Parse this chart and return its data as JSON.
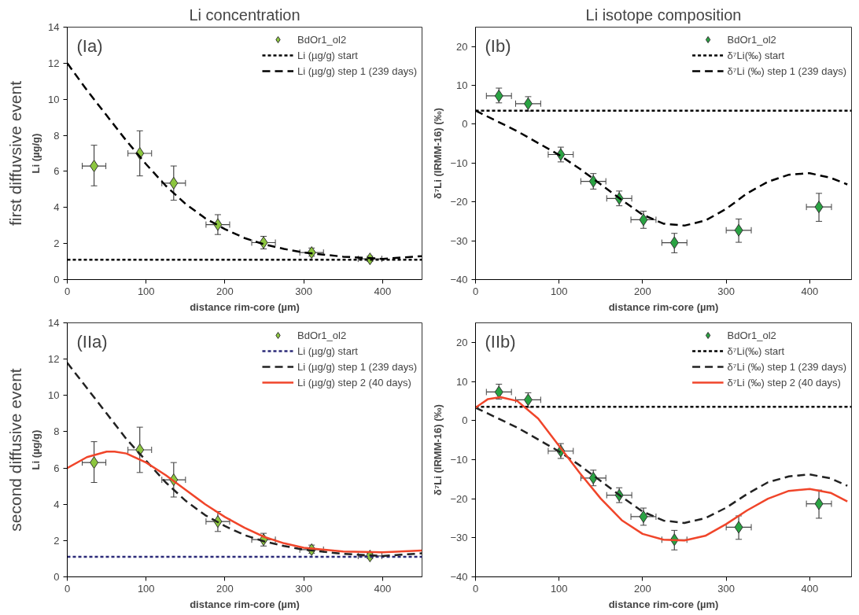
{
  "chart_data": [
    {
      "type": "line",
      "title": "Li concentration",
      "xlabel": "distance rim-core (µm)",
      "ylabel": "Li (µg/g)",
      "annotations": [
        "(Ia)",
        "first diffuvsive event"
      ],
      "xlim": [
        0,
        450
      ],
      "ylim": [
        0,
        14
      ],
      "xticks": [
        0,
        100,
        200,
        300,
        400
      ],
      "yticks": [
        0,
        2,
        4,
        6,
        8,
        10,
        12,
        14
      ],
      "grid": false,
      "legend": "top right",
      "series": [
        {
          "name": "BdOr1_ol2",
          "type": "scatter",
          "marker": "diamond",
          "color": "#8cc63f",
          "x": [
            34,
            92,
            135,
            191,
            249,
            310,
            384
          ],
          "values": [
            6.3,
            7.0,
            5.35,
            3.05,
            2.05,
            1.5,
            1.15
          ],
          "errors": [
            [
              5.2,
              7.45
            ],
            [
              5.75,
              8.25
            ],
            [
              4.4,
              6.3
            ],
            [
              2.5,
              3.6
            ],
            [
              1.7,
              2.4
            ],
            [
              1.3,
              1.75
            ],
            [
              1.0,
              1.3
            ]
          ],
          "xerrors": [
            15,
            15,
            15,
            15,
            15,
            15,
            15
          ]
        },
        {
          "name": "Li (µg/g) start",
          "color": "#000000",
          "line_style": "dotted",
          "x": [
            0,
            450
          ],
          "values": [
            1.1,
            1.1
          ]
        },
        {
          "name": "Li (µg/g) step 1 (239 days)",
          "color": "#000000",
          "line_style": "dashed",
          "x": [
            0,
            25,
            50,
            75,
            100,
            125,
            150,
            175,
            200,
            225,
            250,
            275,
            300,
            350,
            400,
            450
          ],
          "values": [
            12,
            10.5,
            9.1,
            7.7,
            6.4,
            5.2,
            4.2,
            3.4,
            2.8,
            2.3,
            1.95,
            1.7,
            1.5,
            1.27,
            1.15,
            1.3
          ]
        }
      ]
    },
    {
      "type": "line",
      "title": "Li isotope composition",
      "xlabel": "distance rim-core (µm)",
      "ylabel": "δ⁷Li (IRMM-16) (‰)",
      "annotations": [
        "(Ib)"
      ],
      "xlim": [
        0,
        450
      ],
      "ylim": [
        -40,
        25
      ],
      "xticks": [
        0,
        100,
        200,
        300,
        400
      ],
      "yticks": [
        -40,
        -30,
        -20,
        -10,
        0,
        10,
        20
      ],
      "grid": false,
      "legend": "top right",
      "series": [
        {
          "name": "BdOr1_ol2",
          "type": "scatter",
          "marker": "diamond",
          "color": "#2aa343",
          "x": [
            28,
            63,
            102,
            141,
            172,
            201,
            238,
            315,
            411
          ],
          "values": [
            7.3,
            5.3,
            -7.8,
            -14.7,
            -19.1,
            -24.6,
            -30.5,
            -27.3,
            -21.3
          ],
          "errors": [
            [
              5.5,
              9.3
            ],
            [
              3.4,
              7.1
            ],
            [
              -9.7,
              -5.9
            ],
            [
              -16.7,
              -12.7
            ],
            [
              -21,
              -17.2
            ],
            [
              -26.8,
              -22.4
            ],
            [
              -33.1,
              -28.1
            ],
            [
              -30.4,
              -24.4
            ],
            [
              -25,
              -17.8
            ]
          ],
          "xerrors": [
            15,
            15,
            15,
            15,
            15,
            15,
            15,
            15,
            15
          ]
        },
        {
          "name": "δ⁷Li(‰) start",
          "color": "#000000",
          "line_style": "dotted",
          "x": [
            0,
            450
          ],
          "values": [
            3.5,
            3.5
          ]
        },
        {
          "name": "δ⁷Li (‰) step 1 (239 days)",
          "color": "#000000",
          "line_style": "dashed",
          "x": [
            0,
            50,
            100,
            125,
            150,
            175,
            200,
            225,
            250,
            275,
            300,
            325,
            350,
            375,
            400,
            425,
            445
          ],
          "values": [
            3.5,
            -1.8,
            -7.9,
            -11.5,
            -15.5,
            -19.5,
            -23.3,
            -25.6,
            -26.1,
            -24.8,
            -21.8,
            -17.8,
            -14.8,
            -13,
            -12.6,
            -13.8,
            -15.5
          ]
        }
      ]
    },
    {
      "type": "line",
      "xlabel": "distance rim-core (µm)",
      "ylabel": "Li (µg/g)",
      "annotations": [
        "(IIa)",
        "second diffusive event"
      ],
      "xlim": [
        0,
        450
      ],
      "ylim": [
        0,
        14
      ],
      "xticks": [
        0,
        100,
        200,
        300,
        400
      ],
      "yticks": [
        0,
        2,
        4,
        6,
        8,
        10,
        12,
        14
      ],
      "grid": false,
      "legend": "top right",
      "series": [
        {
          "name": "BdOr1_ol2",
          "type": "scatter",
          "marker": "diamond",
          "color": "#8cc63f",
          "x": [
            34,
            92,
            135,
            191,
            249,
            310,
            384
          ],
          "values": [
            6.3,
            7.0,
            5.35,
            3.05,
            2.05,
            1.5,
            1.15
          ],
          "errors": [
            [
              5.2,
              7.45
            ],
            [
              5.75,
              8.25
            ],
            [
              4.4,
              6.3
            ],
            [
              2.5,
              3.6
            ],
            [
              1.7,
              2.4
            ],
            [
              1.3,
              1.75
            ],
            [
              1.0,
              1.3
            ]
          ],
          "xerrors": [
            15,
            15,
            15,
            15,
            15,
            15,
            15
          ]
        },
        {
          "name": "Li (µg/g) start",
          "color": "#2b2a78",
          "line_style": "dotted",
          "x": [
            0,
            450
          ],
          "values": [
            1.1,
            1.1
          ]
        },
        {
          "name": "Li (µg/g) step 1 (239 days)",
          "color": "#222222",
          "line_style": "dashed",
          "x": [
            0,
            25,
            50,
            75,
            100,
            125,
            150,
            175,
            200,
            225,
            250,
            275,
            300,
            350,
            400,
            450
          ],
          "values": [
            11.8,
            10.4,
            9.0,
            7.6,
            6.4,
            5.2,
            4.2,
            3.4,
            2.8,
            2.3,
            1.95,
            1.7,
            1.5,
            1.27,
            1.15,
            1.3
          ]
        },
        {
          "name": "Li (µg/g) step 2 (40 days)",
          "color": "#f0452a",
          "line_style": "solid",
          "x": [
            0,
            25,
            50,
            60,
            75,
            100,
            125,
            150,
            175,
            200,
            225,
            250,
            275,
            300,
            350,
            400,
            450
          ],
          "values": [
            6.0,
            6.6,
            6.9,
            6.9,
            6.8,
            6.3,
            5.6,
            4.8,
            4.0,
            3.3,
            2.7,
            2.2,
            1.85,
            1.6,
            1.4,
            1.35,
            1.45
          ]
        }
      ]
    },
    {
      "type": "line",
      "xlabel": "distance rim-core (µm)",
      "ylabel": "δ⁷Li (IRMM-16) (‰)",
      "annotations": [
        "(IIb)"
      ],
      "xlim": [
        0,
        450
      ],
      "ylim": [
        -40,
        25
      ],
      "xticks": [
        0,
        100,
        200,
        300,
        400
      ],
      "yticks": [
        -40,
        -30,
        -20,
        -10,
        0,
        10,
        20
      ],
      "grid": false,
      "legend": "top right",
      "series": [
        {
          "name": "BdOr1_ol2",
          "type": "scatter",
          "marker": "diamond",
          "color": "#2aa343",
          "x": [
            28,
            63,
            102,
            141,
            172,
            201,
            238,
            315,
            411
          ],
          "values": [
            7.3,
            5.3,
            -7.8,
            -14.7,
            -19.1,
            -24.6,
            -30.5,
            -27.3,
            -21.3
          ],
          "errors": [
            [
              5.5,
              9.3
            ],
            [
              3.4,
              7.1
            ],
            [
              -9.7,
              -5.9
            ],
            [
              -16.7,
              -12.7
            ],
            [
              -21,
              -17.2
            ],
            [
              -26.8,
              -22.4
            ],
            [
              -33.1,
              -28.1
            ],
            [
              -30.4,
              -24.4
            ],
            [
              -25,
              -17.8
            ]
          ],
          "xerrors": [
            15,
            15,
            15,
            15,
            15,
            15,
            15,
            15,
            15
          ]
        },
        {
          "name": "δ⁷Li(‰) start",
          "color": "#000000",
          "line_style": "dotted",
          "x": [
            0,
            450
          ],
          "values": [
            3.5,
            3.5
          ]
        },
        {
          "name": "δ⁷Li (‰) step 1 (239 days)",
          "color": "#222222",
          "line_style": "dashed",
          "x": [
            0,
            50,
            100,
            125,
            150,
            175,
            200,
            225,
            250,
            275,
            300,
            325,
            350,
            375,
            400,
            425,
            445
          ],
          "values": [
            3.3,
            -1.8,
            -7.9,
            -11.5,
            -15.5,
            -19.5,
            -23.3,
            -25.6,
            -26.2,
            -25.0,
            -22.3,
            -18.8,
            -15.8,
            -14.3,
            -13.8,
            -14.8,
            -16.7
          ]
        },
        {
          "name": "δ⁷Li (‰) step 2 (40 days)",
          "color": "#f0452a",
          "line_style": "solid",
          "x": [
            0,
            15,
            30,
            50,
            75,
            100,
            125,
            150,
            175,
            200,
            225,
            250,
            275,
            300,
            325,
            350,
            375,
            400,
            425,
            445
          ],
          "values": [
            3.3,
            5.5,
            6.0,
            5.0,
            0.5,
            -6.5,
            -13.5,
            -20,
            -25.5,
            -29,
            -30.5,
            -30.7,
            -29.5,
            -26.5,
            -23,
            -20,
            -18,
            -17.5,
            -18.5,
            -20.7
          ]
        }
      ]
    }
  ]
}
